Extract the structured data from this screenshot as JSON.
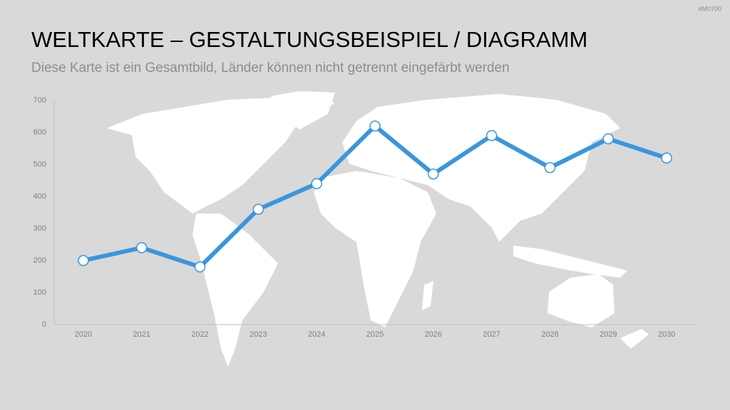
{
  "code": "#M0700",
  "chart_data": {
    "type": "line",
    "title": "WELTKARTE – GESTALTUNGSBEISPIEL / DIAGRAMM",
    "subtitle": "Diese Karte ist ein Gesamtbild, Länder können nicht getrennt eingefärbt werden",
    "categories": [
      "2020",
      "2021",
      "2022",
      "2023",
      "2024",
      "2025",
      "2026",
      "2027",
      "2028",
      "2029",
      "2030"
    ],
    "values": [
      200,
      240,
      180,
      360,
      440,
      620,
      470,
      590,
      490,
      580,
      520
    ],
    "color": "#3b96dd",
    "ylim": [
      0,
      700
    ],
    "yticks": [
      0,
      100,
      200,
      300,
      400,
      500,
      600,
      700
    ],
    "grid": false
  }
}
